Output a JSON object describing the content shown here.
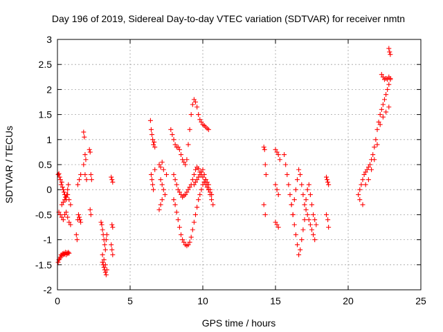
{
  "chart_data": {
    "type": "scatter",
    "title": "Day 196 of 2019, Sidereal Day-to-day VTEC variation (SDTVAR) for receiver nmtn",
    "xlabel": "GPS time / hours",
    "ylabel": "SDTVAR / TECUs",
    "xlim": [
      0,
      25
    ],
    "ylim": [
      -2,
      3
    ],
    "xticks": [
      0,
      5,
      10,
      15,
      20,
      25
    ],
    "xtick_labels": [
      "0",
      "5",
      "10",
      "15",
      "20",
      "25"
    ],
    "yticks": [
      -2,
      -1.5,
      -1,
      -0.5,
      0,
      0.5,
      1,
      1.5,
      2,
      2.5,
      3
    ],
    "ytick_labels": [
      "-2",
      "-1.5",
      "-1",
      "-0.5",
      "0",
      "0.5",
      "1",
      "1.5",
      "2",
      "2.5",
      "3"
    ],
    "grid": true,
    "marker": "plus",
    "color": "#ff0000",
    "series": [
      {
        "name": "SDTVAR",
        "x": [
          0.05,
          0.1,
          0.15,
          0.2,
          0.25,
          0.3,
          0.35,
          0.4,
          0.45,
          0.5,
          0.55,
          0.6,
          0.65,
          0.7,
          0.75,
          0.8,
          0.05,
          0.1,
          0.15,
          0.2,
          0.25,
          0.3,
          0.35,
          0.4,
          0.45,
          0.5,
          0.55,
          0.6,
          0.65,
          0.7,
          0.75,
          0.1,
          0.2,
          0.3,
          0.4,
          0.5,
          0.6,
          0.7,
          0.8,
          0.9,
          0.3,
          0.4,
          0.5,
          0.6,
          0.7,
          0.8,
          0.9,
          1.3,
          1.35,
          1.4,
          1.45,
          1.5,
          1.55,
          1.6,
          1.4,
          1.5,
          1.6,
          1.8,
          1.85,
          1.9,
          1.95,
          1.8,
          1.9,
          2.0,
          2.2,
          2.25,
          2.3,
          2.35,
          2.25,
          2.3,
          3.0,
          3.05,
          3.1,
          3.15,
          3.2,
          3.25,
          3.3,
          3.35,
          3.4,
          3.1,
          3.2,
          3.3,
          3.4,
          3.1,
          3.15,
          3.2,
          3.25,
          3.3,
          3.35,
          3.7,
          3.75,
          3.8,
          3.75,
          3.8,
          3.7,
          3.75,
          3.8,
          6.4,
          6.45,
          6.5,
          6.55,
          6.6,
          6.65,
          6.7,
          6.45,
          6.5,
          6.55,
          6.6,
          6.7,
          7.0,
          7.1,
          7.2,
          7.3,
          7.0,
          7.1,
          7.2,
          7.1,
          7.2,
          7.3,
          7.4,
          7.5,
          7.8,
          7.9,
          8.0,
          8.1,
          8.2,
          8.3,
          8.4,
          8.5,
          8.6,
          8.7,
          8.8,
          8.9,
          9.0,
          9.1,
          9.2,
          9.3,
          9.4,
          9.5,
          9.6,
          9.7,
          9.8,
          9.9,
          10.0,
          10.1,
          10.2,
          10.3,
          10.4,
          8.0,
          8.1,
          8.2,
          8.3,
          8.4,
          8.5,
          8.6,
          8.7,
          8.8,
          8.9,
          9.0,
          9.1,
          9.2,
          9.3,
          9.4,
          9.5,
          9.6,
          9.7,
          9.8,
          9.9,
          10.0,
          10.1,
          10.2,
          10.3,
          10.4,
          10.5,
          10.6,
          8.0,
          8.1,
          8.2,
          8.3,
          8.4,
          8.5,
          8.6,
          8.7,
          8.8,
          8.9,
          9.0,
          9.1,
          9.2,
          9.3,
          9.4,
          9.5,
          9.6,
          9.7,
          9.8,
          9.9,
          10.0,
          10.1,
          10.2,
          10.3,
          10.4,
          10.5,
          10.6,
          9.4,
          9.5,
          9.6,
          9.7,
          9.8,
          9.9,
          10.0,
          10.1,
          10.2,
          10.3,
          10.4,
          10.5,
          10.6,
          10.7,
          14.2,
          14.25,
          14.3,
          14.35,
          14.2,
          14.3,
          15.0,
          15.1,
          15.2,
          15.0,
          15.1,
          15.2,
          15.3,
          15.0,
          15.1,
          15.2,
          15.6,
          15.7,
          15.8,
          15.9,
          16.0,
          16.1,
          16.2,
          16.3,
          16.4,
          16.5,
          16.6,
          16.7,
          16.8,
          16.9,
          17.0,
          17.1,
          17.2,
          17.3,
          17.4,
          17.5,
          17.6,
          17.7,
          17.8,
          16.1,
          16.2,
          16.3,
          16.4,
          16.5,
          16.6,
          16.7,
          16.8,
          16.9,
          17.0,
          17.1,
          17.2,
          17.3,
          17.4,
          17.5,
          17.6,
          17.7,
          18.5,
          18.55,
          18.6,
          18.65,
          18.5,
          18.6,
          18.65,
          20.7,
          20.8,
          20.9,
          21.0,
          21.1,
          21.2,
          21.3,
          21.4,
          21.5,
          21.6,
          21.7,
          21.8,
          21.9,
          22.0,
          22.1,
          22.2,
          22.3,
          22.4,
          22.5,
          22.6,
          22.7,
          22.8,
          22.9,
          20.8,
          21.0,
          21.2,
          21.4,
          21.6,
          21.8,
          22.0,
          22.2,
          22.4,
          22.6,
          22.8,
          22.3,
          22.4,
          22.5,
          22.6,
          22.7,
          22.8,
          22.9,
          22.8,
          22.85,
          22.9
        ],
        "y": [
          -1.45,
          -1.4,
          -1.38,
          -1.35,
          -1.3,
          -1.32,
          -1.28,
          -1.3,
          -1.27,
          -1.29,
          -1.25,
          -1.3,
          -1.26,
          -1.28,
          -1.25,
          -1.27,
          0.3,
          0.32,
          0.25,
          0.2,
          0.1,
          0.15,
          0.05,
          0.0,
          -0.05,
          -0.1,
          -0.15,
          -0.2,
          -0.1,
          0.0,
          0.1,
          -0.45,
          -0.5,
          -0.55,
          -0.6,
          -0.5,
          -0.45,
          -0.55,
          -0.65,
          -0.7,
          -0.3,
          -0.25,
          -0.2,
          -0.15,
          -0.1,
          -0.2,
          -0.3,
          -0.9,
          -1.0,
          -0.6,
          -0.5,
          -0.55,
          -0.6,
          -0.65,
          0.1,
          0.2,
          0.3,
          1.15,
          1.05,
          0.7,
          0.6,
          0.5,
          0.3,
          0.2,
          0.8,
          0.75,
          0.3,
          0.2,
          -0.4,
          -0.5,
          -0.65,
          -0.7,
          -0.8,
          -0.9,
          -1.0,
          -1.1,
          -1.2,
          -1.0,
          -0.9,
          -1.3,
          -1.4,
          -1.5,
          -1.6,
          -1.45,
          -1.5,
          -1.55,
          -1.6,
          -1.65,
          -1.7,
          0.25,
          0.2,
          0.15,
          -0.7,
          -0.75,
          -1.1,
          -1.2,
          -1.3,
          1.38,
          1.2,
          1.1,
          1.0,
          0.9,
          0.95,
          0.85,
          0.3,
          0.2,
          0.1,
          0.0,
          0.4,
          0.5,
          0.45,
          0.55,
          0.4,
          -0.4,
          -0.3,
          -0.2,
          0.2,
          0.1,
          0.0,
          -0.1,
          0.3,
          1.2,
          1.1,
          1.0,
          0.9,
          0.85,
          0.85,
          0.8,
          0.7,
          0.6,
          0.55,
          0.5,
          0.6,
          0.9,
          1.2,
          1.5,
          1.7,
          1.8,
          1.75,
          1.65,
          1.5,
          1.4,
          1.35,
          1.3,
          1.28,
          1.25,
          1.22,
          1.2,
          0.3,
          0.2,
          0.1,
          0.0,
          -0.05,
          -0.1,
          -0.15,
          -0.12,
          -0.1,
          -0.05,
          0.0,
          0.05,
          0.1,
          0.2,
          0.3,
          0.4,
          0.45,
          0.42,
          0.35,
          0.3,
          0.25,
          0.15,
          0.1,
          0.05,
          0.0,
          -0.05,
          -0.1,
          -0.2,
          -0.3,
          -0.45,
          -0.6,
          -0.75,
          -0.9,
          -1.0,
          -1.05,
          -1.1,
          -1.12,
          -1.1,
          -1.05,
          -0.95,
          -0.8,
          -0.65,
          -0.5,
          -0.35,
          -0.2,
          -0.1,
          0.0,
          0.1,
          0.15,
          0.2,
          0.15,
          0.1,
          0.0,
          -0.1,
          0.1,
          0.15,
          0.2,
          0.25,
          0.3,
          0.35,
          0.4,
          0.3,
          0.2,
          0.1,
          0.0,
          -0.1,
          -0.2,
          -0.3,
          0.85,
          0.8,
          0.5,
          0.3,
          -0.3,
          -0.5,
          0.8,
          0.75,
          0.7,
          -0.65,
          -0.7,
          -0.75,
          0.6,
          0.1,
          0.0,
          -0.1,
          0.7,
          0.5,
          0.3,
          0.1,
          -0.1,
          -0.3,
          -0.5,
          -0.2,
          0.0,
          0.2,
          0.4,
          0.3,
          0.1,
          -0.1,
          -0.3,
          -0.2,
          0.0,
          0.1,
          -0.1,
          -0.3,
          -0.5,
          -0.6,
          -0.7,
          -0.3,
          -0.5,
          -0.7,
          -0.9,
          -1.1,
          -1.3,
          -1.2,
          -1.0,
          -0.8,
          -0.6,
          -0.4,
          -0.5,
          -0.6,
          -0.7,
          -0.8,
          -0.9,
          -1.0,
          0.25,
          0.2,
          0.15,
          0.1,
          -0.5,
          -0.6,
          -0.75,
          -0.1,
          0.0,
          0.1,
          0.2,
          0.3,
          0.35,
          0.4,
          0.45,
          0.5,
          0.6,
          0.7,
          0.85,
          1.0,
          1.2,
          1.35,
          1.5,
          1.6,
          1.7,
          1.8,
          1.9,
          2.0,
          2.1,
          2.2,
          -0.2,
          -0.3,
          0.1,
          0.2,
          0.4,
          0.6,
          0.9,
          1.3,
          1.45,
          1.55,
          1.65,
          2.3,
          2.25,
          2.2,
          2.22,
          2.2,
          2.25,
          2.22,
          2.82,
          2.75,
          2.7
        ]
      }
    ]
  }
}
